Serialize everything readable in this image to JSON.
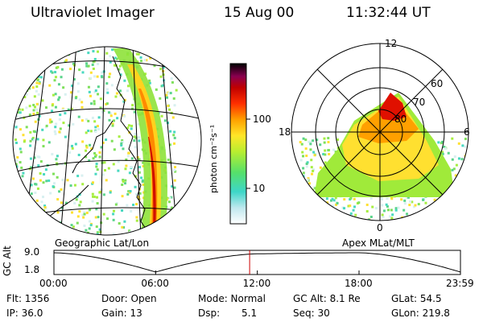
{
  "header": {
    "instrument": "Ultraviolet Imager",
    "date": "15 Aug 00",
    "time": "11:32:44 UT"
  },
  "colorbar": {
    "unit_label": "photon cm⁻²s⁻¹",
    "tick_100": "100",
    "tick_10": "10"
  },
  "left_panel": {
    "caption": "Geographic Lat/Lon"
  },
  "right_panel": {
    "caption": "Apex MLat/MLT",
    "mlt_12": "12",
    "mlt_18": "18",
    "mlt_6": "6",
    "mlt_0": "0",
    "lat_60": "60",
    "lat_70": "70",
    "lat_80": "80"
  },
  "timeline": {
    "ylabel": "GC Alt",
    "y_top": "9.0",
    "y_bottom": "1.8",
    "x_labels": [
      "00:00",
      "06:00",
      "12:00",
      "18:00",
      "23:59"
    ],
    "marker_time": "11:32:44",
    "curve_color": "#000000",
    "marker_color": "#cc0000",
    "chart_data": {
      "type": "line",
      "x": [
        "00:00",
        "06:00",
        "12:00",
        "18:00",
        "23:59"
      ],
      "series": [
        {
          "values": [
            9.0,
            1.8,
            8.6,
            9.0,
            1.8
          ]
        }
      ],
      "ylim": [
        1.8,
        9.0
      ]
    }
  },
  "info": {
    "flt": "Flt: 1356",
    "ip": "IP: 36.0",
    "door": "Door: Open",
    "gain": "Gain: 13",
    "mode": "Mode: Normal",
    "dsp_label": "Dsp:",
    "dsp_value": "5.1",
    "gcalt": "GC Alt: 8.1 Re",
    "seq": "Seq: 30",
    "glat": "GLat:  54.5",
    "glon": "GLon: 219.8"
  }
}
